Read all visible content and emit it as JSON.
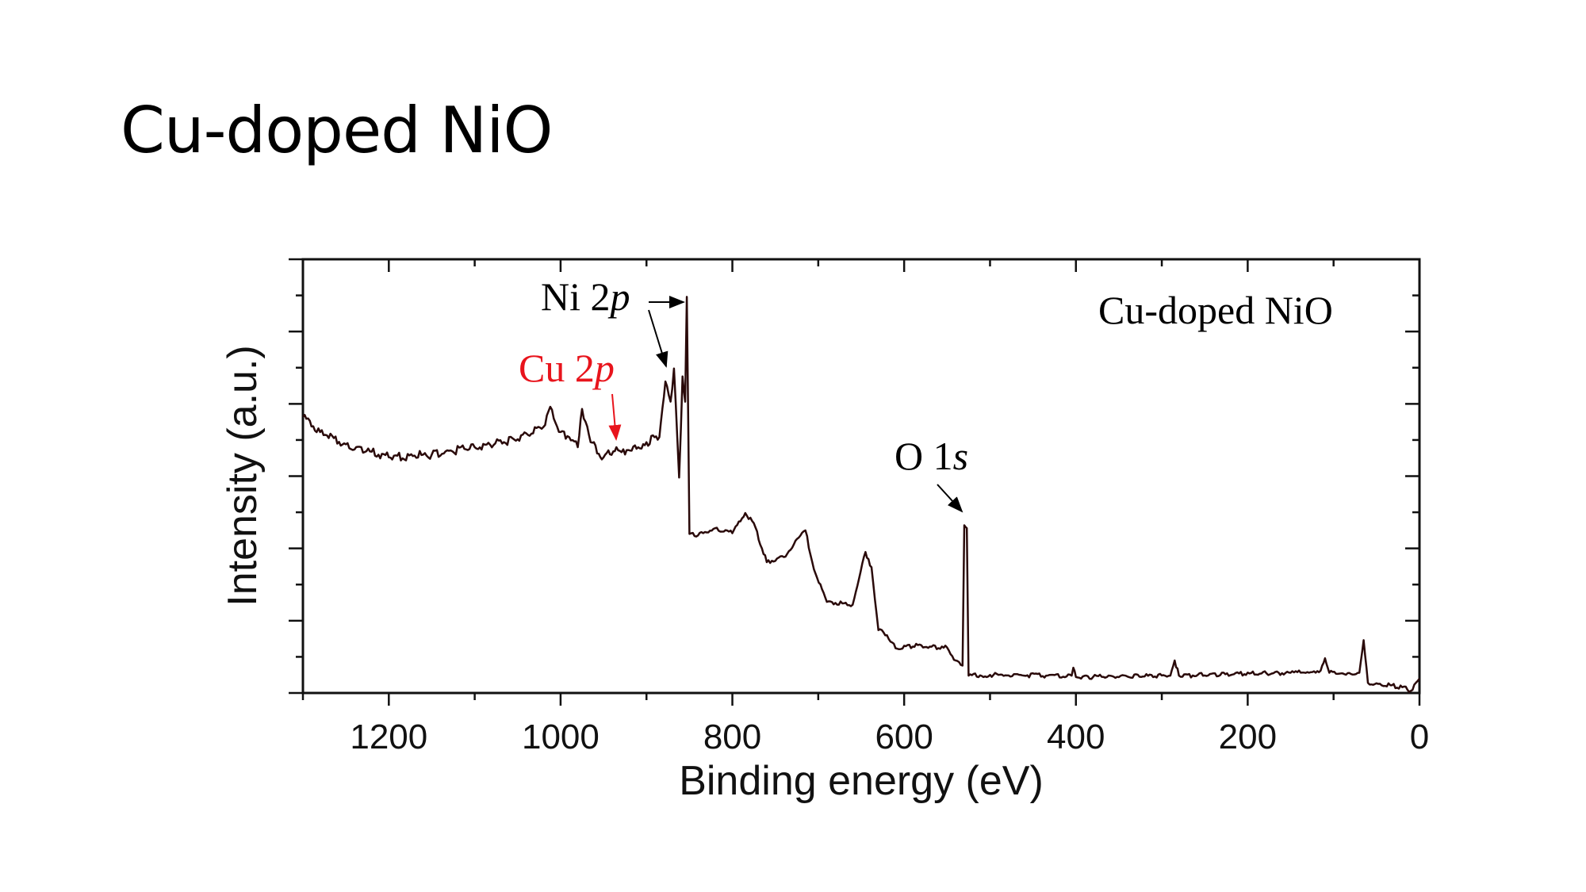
{
  "slide": {
    "title": "Cu-doped NiO"
  },
  "chart_data": {
    "type": "line",
    "title": "",
    "xlabel": "Binding energy (eV)",
    "ylabel": "Intensity (a.u.)",
    "xlim": [
      1300,
      0
    ],
    "x_reversed": true,
    "ylim": [
      0,
      6
    ],
    "xticks": [
      1200,
      1000,
      800,
      600,
      400,
      200,
      0
    ],
    "ytick_labels_shown": false,
    "grid": false,
    "legend": {
      "text": "Cu-doped NiO",
      "placement": "top-right"
    },
    "line_color": "#2a0a0a",
    "annotations": [
      {
        "text": "Ni 2",
        "italic": "p",
        "color": "#000000",
        "target_x": 853
      },
      {
        "text": "Cu 2",
        "italic": "p",
        "color": "#e8141c",
        "target_x": 935
      },
      {
        "text": "O 1",
        "italic": "s",
        "color": "#000000",
        "target_x": 530
      }
    ],
    "series": [
      {
        "x": [
          1300,
          1280,
          1250,
          1200,
          1150,
          1100,
          1050,
          1020,
          1012,
          1000,
          990,
          980,
          975,
          965,
          950,
          935,
          925,
          900,
          885,
          878,
          872,
          868,
          862,
          858,
          855,
          853,
          850,
          840,
          820,
          800,
          785,
          775,
          760,
          740,
          715,
          705,
          690,
          660,
          645,
          638,
          630,
          620,
          610,
          580,
          560,
          550,
          540,
          532,
          530,
          527,
          525,
          500,
          405,
          403,
          400,
          290,
          285,
          280,
          150,
          115,
          110,
          105,
          70,
          65,
          60,
          20,
          10,
          0
        ],
        "y": [
          3.82,
          3.61,
          3.44,
          3.26,
          3.3,
          3.4,
          3.51,
          3.68,
          3.96,
          3.61,
          3.54,
          3.4,
          3.93,
          3.47,
          3.26,
          3.4,
          3.3,
          3.47,
          3.54,
          4.31,
          4.03,
          4.49,
          2.98,
          4.38,
          4.03,
          5.48,
          2.2,
          2.18,
          2.28,
          2.21,
          2.49,
          2.35,
          1.81,
          1.88,
          2.25,
          1.71,
          1.26,
          1.22,
          1.95,
          1.74,
          0.87,
          0.8,
          0.62,
          0.66,
          0.62,
          0.63,
          0.45,
          0.38,
          2.32,
          2.28,
          0.24,
          0.25,
          0.24,
          0.35,
          0.22,
          0.24,
          0.45,
          0.24,
          0.28,
          0.31,
          0.48,
          0.28,
          0.28,
          0.73,
          0.14,
          0.08,
          0.03,
          0.2
        ]
      }
    ]
  }
}
